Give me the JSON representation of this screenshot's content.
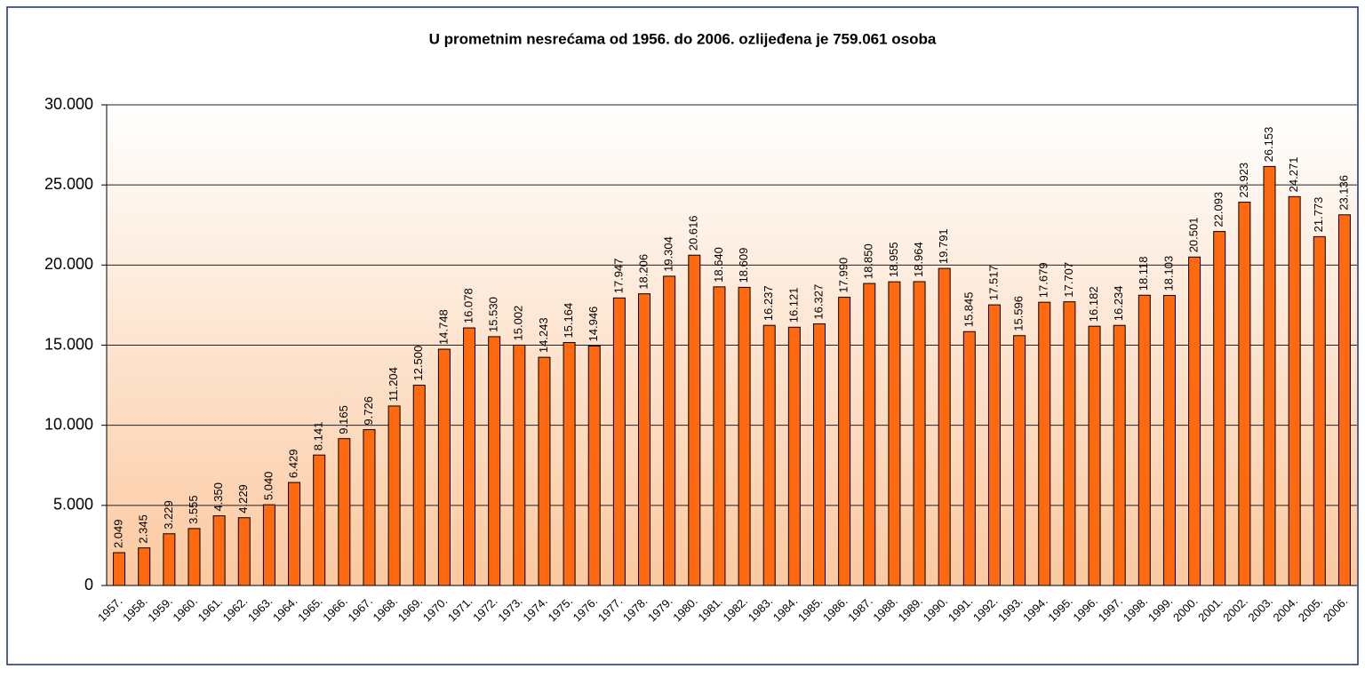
{
  "chart_data": {
    "type": "bar",
    "title": "U prometnim nesrećama od 1956. do 2006. ozlijeđena je 759.061 osoba",
    "categories": [
      "1957.",
      "1958.",
      "1959.",
      "1960.",
      "1961.",
      "1962.",
      "1963.",
      "1964.",
      "1965.",
      "1966.",
      "1967.",
      "1968.",
      "1969.",
      "1970.",
      "1971.",
      "1972.",
      "1973.",
      "1974.",
      "1975.",
      "1976.",
      "1977.",
      "1978.",
      "1979.",
      "1980.",
      "1981.",
      "1982.",
      "1983.",
      "1984.",
      "1985.",
      "1986.",
      "1987.",
      "1988.",
      "1989.",
      "1990.",
      "1991.",
      "1992.",
      "1993.",
      "1994.",
      "1995.",
      "1996.",
      "1997.",
      "1998.",
      "1999.",
      "2000.",
      "2001.",
      "2002.",
      "2003.",
      "2004.",
      "2005.",
      "2006."
    ],
    "values": [
      2049,
      2345,
      3229,
      3555,
      4350,
      4229,
      5040,
      6429,
      8141,
      9165,
      9726,
      11204,
      12500,
      14748,
      16078,
      15530,
      15002,
      14243,
      15164,
      14946,
      17947,
      18206,
      19304,
      20616,
      18640,
      18609,
      16237,
      16121,
      16327,
      17990,
      18850,
      18955,
      18964,
      19791,
      15845,
      17517,
      15596,
      17679,
      17707,
      16182,
      16234,
      18118,
      18103,
      20501,
      22093,
      23923,
      26153,
      24271,
      21773,
      23136
    ],
    "value_labels": [
      "2.049",
      "2.345",
      "3.229",
      "3.555",
      "4.350",
      "4.229",
      "5.040",
      "6.429",
      "8.141",
      "9.165",
      "9.726",
      "11.204",
      "12.500",
      "14.748",
      "16.078",
      "15.530",
      "15.002",
      "14.243",
      "15.164",
      "14.946",
      "17.947",
      "18.206",
      "19.304",
      "20.616",
      "18.640",
      "18.609",
      "16.237",
      "16.121",
      "16.327",
      "17.990",
      "18.850",
      "18.955",
      "18.964",
      "19.791",
      "15.845",
      "17.517",
      "15.596",
      "17.679",
      "17.707",
      "16.182",
      "16.234",
      "18.118",
      "18.103",
      "20.501",
      "22.093",
      "23.923",
      "26.153",
      "24.271",
      "21.773",
      "23.136"
    ],
    "color": "#ff6a10",
    "ylim": [
      0,
      30000
    ],
    "yticks": [
      0,
      {
        "value": 5000,
        "label": "5.000"
      },
      {
        "value": 10000,
        "label": "10.000"
      },
      {
        "value": 15000,
        "label": "15.000"
      },
      {
        "value": 20000,
        "label": "20.000"
      },
      {
        "value": 25000,
        "label": "25.000"
      },
      {
        "value": 30000,
        "label": "30.000"
      }
    ],
    "grid": true
  }
}
